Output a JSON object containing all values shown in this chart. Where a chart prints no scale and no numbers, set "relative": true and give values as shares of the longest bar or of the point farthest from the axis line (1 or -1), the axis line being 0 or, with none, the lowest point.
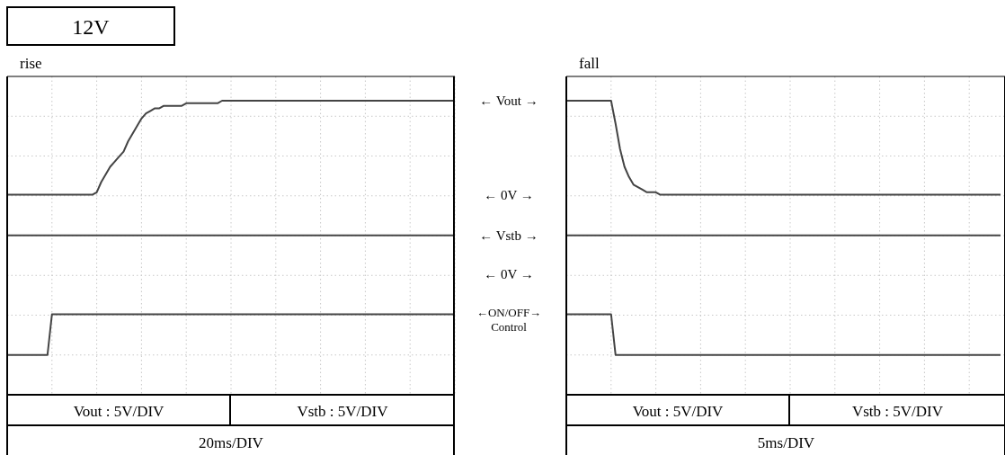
{
  "chart_data": [
    {
      "type": "line",
      "title": "12V",
      "subtitle": "rise",
      "xlabel": "20ms/DIV",
      "relative": true,
      "grid": true,
      "categories": [
        null,
        null,
        null,
        null,
        null,
        null,
        null,
        null,
        null,
        null,
        null,
        null,
        null,
        null,
        null,
        null,
        null,
        null,
        null,
        null,
        null,
        null,
        null,
        null,
        null,
        null,
        null,
        null,
        null,
        null,
        null,
        null,
        null,
        null,
        null,
        null,
        null,
        null,
        null,
        null,
        null,
        null,
        null,
        null,
        null,
        null,
        null,
        null,
        null,
        null,
        null,
        null,
        null,
        null,
        null,
        null,
        null,
        null,
        null,
        null,
        null,
        null,
        null,
        null,
        null,
        null,
        null,
        null,
        null,
        null,
        null,
        null,
        null,
        null,
        null,
        null,
        null,
        null,
        null,
        null,
        null,
        null,
        null,
        null,
        null,
        null,
        null,
        null,
        null,
        null,
        null,
        null,
        null,
        null,
        null,
        null,
        null,
        null,
        null,
        null,
        null
      ],
      "annotations": [
        "← Vout →",
        "← 0V →",
        "← Vstb →",
        "← 0V →",
        "←ON/OFF→",
        "Control",
        "Vout : 5V/DIV",
        "Vstb : 5V/DIV"
      ],
      "series": [
        {
          "color": "#444444",
          "values": [
            0.63,
            0.63,
            0.63,
            0.63,
            0.63,
            0.63,
            0.63,
            0.63,
            0.63,
            0.63,
            0.63,
            0.63,
            0.63,
            0.63,
            0.63,
            0.63,
            0.63,
            0.63,
            0.63,
            0.63,
            0.64,
            0.68,
            0.71,
            0.74,
            0.76,
            0.78,
            0.8,
            0.84,
            0.87,
            0.9,
            0.93,
            0.95,
            0.96,
            0.97,
            0.97,
            0.98,
            0.98,
            0.98,
            0.98,
            0.98,
            0.99,
            0.99,
            0.99,
            0.99,
            0.99,
            0.99,
            0.99,
            0.99,
            1,
            1,
            1,
            1,
            1,
            1,
            1,
            1,
            1,
            1,
            1,
            1,
            1,
            1,
            1,
            1,
            1,
            1,
            1,
            1,
            1,
            1,
            1,
            1,
            1,
            1,
            1,
            1,
            1,
            1,
            1,
            1,
            1,
            1,
            1,
            1,
            1,
            1,
            1,
            1,
            1,
            1,
            1,
            1,
            1,
            1,
            1,
            1,
            1,
            1,
            1,
            1,
            1
          ]
        },
        {
          "color": "#444444",
          "values": [
            0.47,
            0.47,
            0.47,
            0.47,
            0.47,
            0.47,
            0.47,
            0.47,
            0.47,
            0.47,
            0.47,
            0.47,
            0.47,
            0.47,
            0.47,
            0.47,
            0.47,
            0.47,
            0.47,
            0.47,
            0.47,
            0.47,
            0.47,
            0.47,
            0.47,
            0.47,
            0.47,
            0.47,
            0.47,
            0.47,
            0.47,
            0.47,
            0.47,
            0.47,
            0.47,
            0.47,
            0.47,
            0.47,
            0.47,
            0.47,
            0.47,
            0.47,
            0.47,
            0.47,
            0.47,
            0.47,
            0.47,
            0.47,
            0.47,
            0.47,
            0.47,
            0.47,
            0.47,
            0.47,
            0.47,
            0.47,
            0.47,
            0.47,
            0.47,
            0.47,
            0.47,
            0.47,
            0.47,
            0.47,
            0.47,
            0.47,
            0.47,
            0.47,
            0.47,
            0.47,
            0.47,
            0.47,
            0.47,
            0.47,
            0.47,
            0.47,
            0.47,
            0.47,
            0.47,
            0.47,
            0.47,
            0.47,
            0.47,
            0.47,
            0.47,
            0.47,
            0.47,
            0.47,
            0.47,
            0.47,
            0.47,
            0.47,
            0.47,
            0.47,
            0.47,
            0.47,
            0.47,
            0.47,
            0.47,
            0.47,
            0.47
          ]
        },
        {
          "color": "#444444",
          "values": [
            0,
            0,
            0,
            0,
            0,
            0,
            0,
            0,
            0,
            0,
            0.16,
            0.16,
            0.16,
            0.16,
            0.16,
            0.16,
            0.16,
            0.16,
            0.16,
            0.16,
            0.16,
            0.16,
            0.16,
            0.16,
            0.16,
            0.16,
            0.16,
            0.16,
            0.16,
            0.16,
            0.16,
            0.16,
            0.16,
            0.16,
            0.16,
            0.16,
            0.16,
            0.16,
            0.16,
            0.16,
            0.16,
            0.16,
            0.16,
            0.16,
            0.16,
            0.16,
            0.16,
            0.16,
            0.16,
            0.16,
            0.16,
            0.16,
            0.16,
            0.16,
            0.16,
            0.16,
            0.16,
            0.16,
            0.16,
            0.16,
            0.16,
            0.16,
            0.16,
            0.16,
            0.16,
            0.16,
            0.16,
            0.16,
            0.16,
            0.16,
            0.16,
            0.16,
            0.16,
            0.16,
            0.16,
            0.16,
            0.16,
            0.16,
            0.16,
            0.16,
            0.16,
            0.16,
            0.16,
            0.16,
            0.16,
            0.16,
            0.16,
            0.16,
            0.16,
            0.16,
            0.16,
            0.16,
            0.16,
            0.16,
            0.16,
            0.16,
            0.16,
            0.16,
            0.16,
            0.16,
            0.16
          ]
        }
      ]
    },
    {
      "type": "line",
      "subtitle": "fall",
      "xlabel": "5ms/DIV",
      "relative": true,
      "grid": true,
      "categories": [
        null,
        null,
        null,
        null,
        null,
        null,
        null,
        null,
        null,
        null,
        null,
        null,
        null,
        null,
        null,
        null,
        null,
        null,
        null,
        null,
        null,
        null,
        null,
        null,
        null,
        null,
        null,
        null,
        null,
        null,
        null,
        null,
        null,
        null,
        null,
        null,
        null,
        null,
        null,
        null,
        null,
        null,
        null,
        null,
        null,
        null,
        null,
        null,
        null,
        null,
        null,
        null,
        null,
        null,
        null,
        null,
        null,
        null,
        null,
        null,
        null,
        null,
        null,
        null,
        null,
        null,
        null,
        null,
        null,
        null,
        null,
        null,
        null,
        null,
        null,
        null,
        null,
        null,
        null,
        null,
        null,
        null,
        null,
        null,
        null,
        null,
        null,
        null,
        null,
        null,
        null,
        null,
        null,
        null,
        null,
        null,
        null,
        null
      ],
      "annotations": [
        "Vout : 5V/DIV",
        "Vstb : 5V/DIV"
      ],
      "series": [
        {
          "color": "#444444",
          "values": [
            1,
            1,
            1,
            1,
            1,
            1,
            1,
            1,
            1,
            1,
            1,
            0.91,
            0.81,
            0.74,
            0.7,
            0.67,
            0.66,
            0.65,
            0.64,
            0.64,
            0.64,
            0.63,
            0.63,
            0.63,
            0.63,
            0.63,
            0.63,
            0.63,
            0.63,
            0.63,
            0.63,
            0.63,
            0.63,
            0.63,
            0.63,
            0.63,
            0.63,
            0.63,
            0.63,
            0.63,
            0.63,
            0.63,
            0.63,
            0.63,
            0.63,
            0.63,
            0.63,
            0.63,
            0.63,
            0.63,
            0.63,
            0.63,
            0.63,
            0.63,
            0.63,
            0.63,
            0.63,
            0.63,
            0.63,
            0.63,
            0.63,
            0.63,
            0.63,
            0.63,
            0.63,
            0.63,
            0.63,
            0.63,
            0.63,
            0.63,
            0.63,
            0.63,
            0.63,
            0.63,
            0.63,
            0.63,
            0.63,
            0.63,
            0.63,
            0.63,
            0.63,
            0.63,
            0.63,
            0.63,
            0.63,
            0.63,
            0.63,
            0.63,
            0.63,
            0.63,
            0.63,
            0.63,
            0.63,
            0.63,
            0.63,
            0.63,
            0.63,
            0.63
          ]
        },
        {
          "color": "#444444",
          "values": [
            0.47,
            0.47,
            0.47,
            0.47,
            0.47,
            0.47,
            0.47,
            0.47,
            0.47,
            0.47,
            0.47,
            0.47,
            0.47,
            0.47,
            0.47,
            0.47,
            0.47,
            0.47,
            0.47,
            0.47,
            0.47,
            0.47,
            0.47,
            0.47,
            0.47,
            0.47,
            0.47,
            0.47,
            0.47,
            0.47,
            0.47,
            0.47,
            0.47,
            0.47,
            0.47,
            0.47,
            0.47,
            0.47,
            0.47,
            0.47,
            0.47,
            0.47,
            0.47,
            0.47,
            0.47,
            0.47,
            0.47,
            0.47,
            0.47,
            0.47,
            0.47,
            0.47,
            0.47,
            0.47,
            0.47,
            0.47,
            0.47,
            0.47,
            0.47,
            0.47,
            0.47,
            0.47,
            0.47,
            0.47,
            0.47,
            0.47,
            0.47,
            0.47,
            0.47,
            0.47,
            0.47,
            0.47,
            0.47,
            0.47,
            0.47,
            0.47,
            0.47,
            0.47,
            0.47,
            0.47,
            0.47,
            0.47,
            0.47,
            0.47,
            0.47,
            0.47,
            0.47,
            0.47,
            0.47,
            0.47,
            0.47,
            0.47,
            0.47,
            0.47,
            0.47,
            0.47,
            0.47,
            0.47
          ]
        },
        {
          "color": "#444444",
          "values": [
            0.16,
            0.16,
            0.16,
            0.16,
            0.16,
            0.16,
            0.16,
            0.16,
            0.16,
            0.16,
            0.16,
            0,
            0,
            0,
            0,
            0,
            0,
            0,
            0,
            0,
            0,
            0,
            0,
            0,
            0,
            0,
            0,
            0,
            0,
            0,
            0,
            0,
            0,
            0,
            0,
            0,
            0,
            0,
            0,
            0,
            0,
            0,
            0,
            0,
            0,
            0,
            0,
            0,
            0,
            0,
            0,
            0,
            0,
            0,
            0,
            0,
            0,
            0,
            0,
            0,
            0,
            0,
            0,
            0,
            0,
            0,
            0,
            0,
            0,
            0,
            0,
            0,
            0,
            0,
            0,
            0,
            0,
            0,
            0,
            0,
            0,
            0,
            0,
            0,
            0,
            0,
            0,
            0,
            0,
            0,
            0,
            0,
            0,
            0,
            0,
            0,
            0,
            0
          ]
        }
      ]
    }
  ]
}
